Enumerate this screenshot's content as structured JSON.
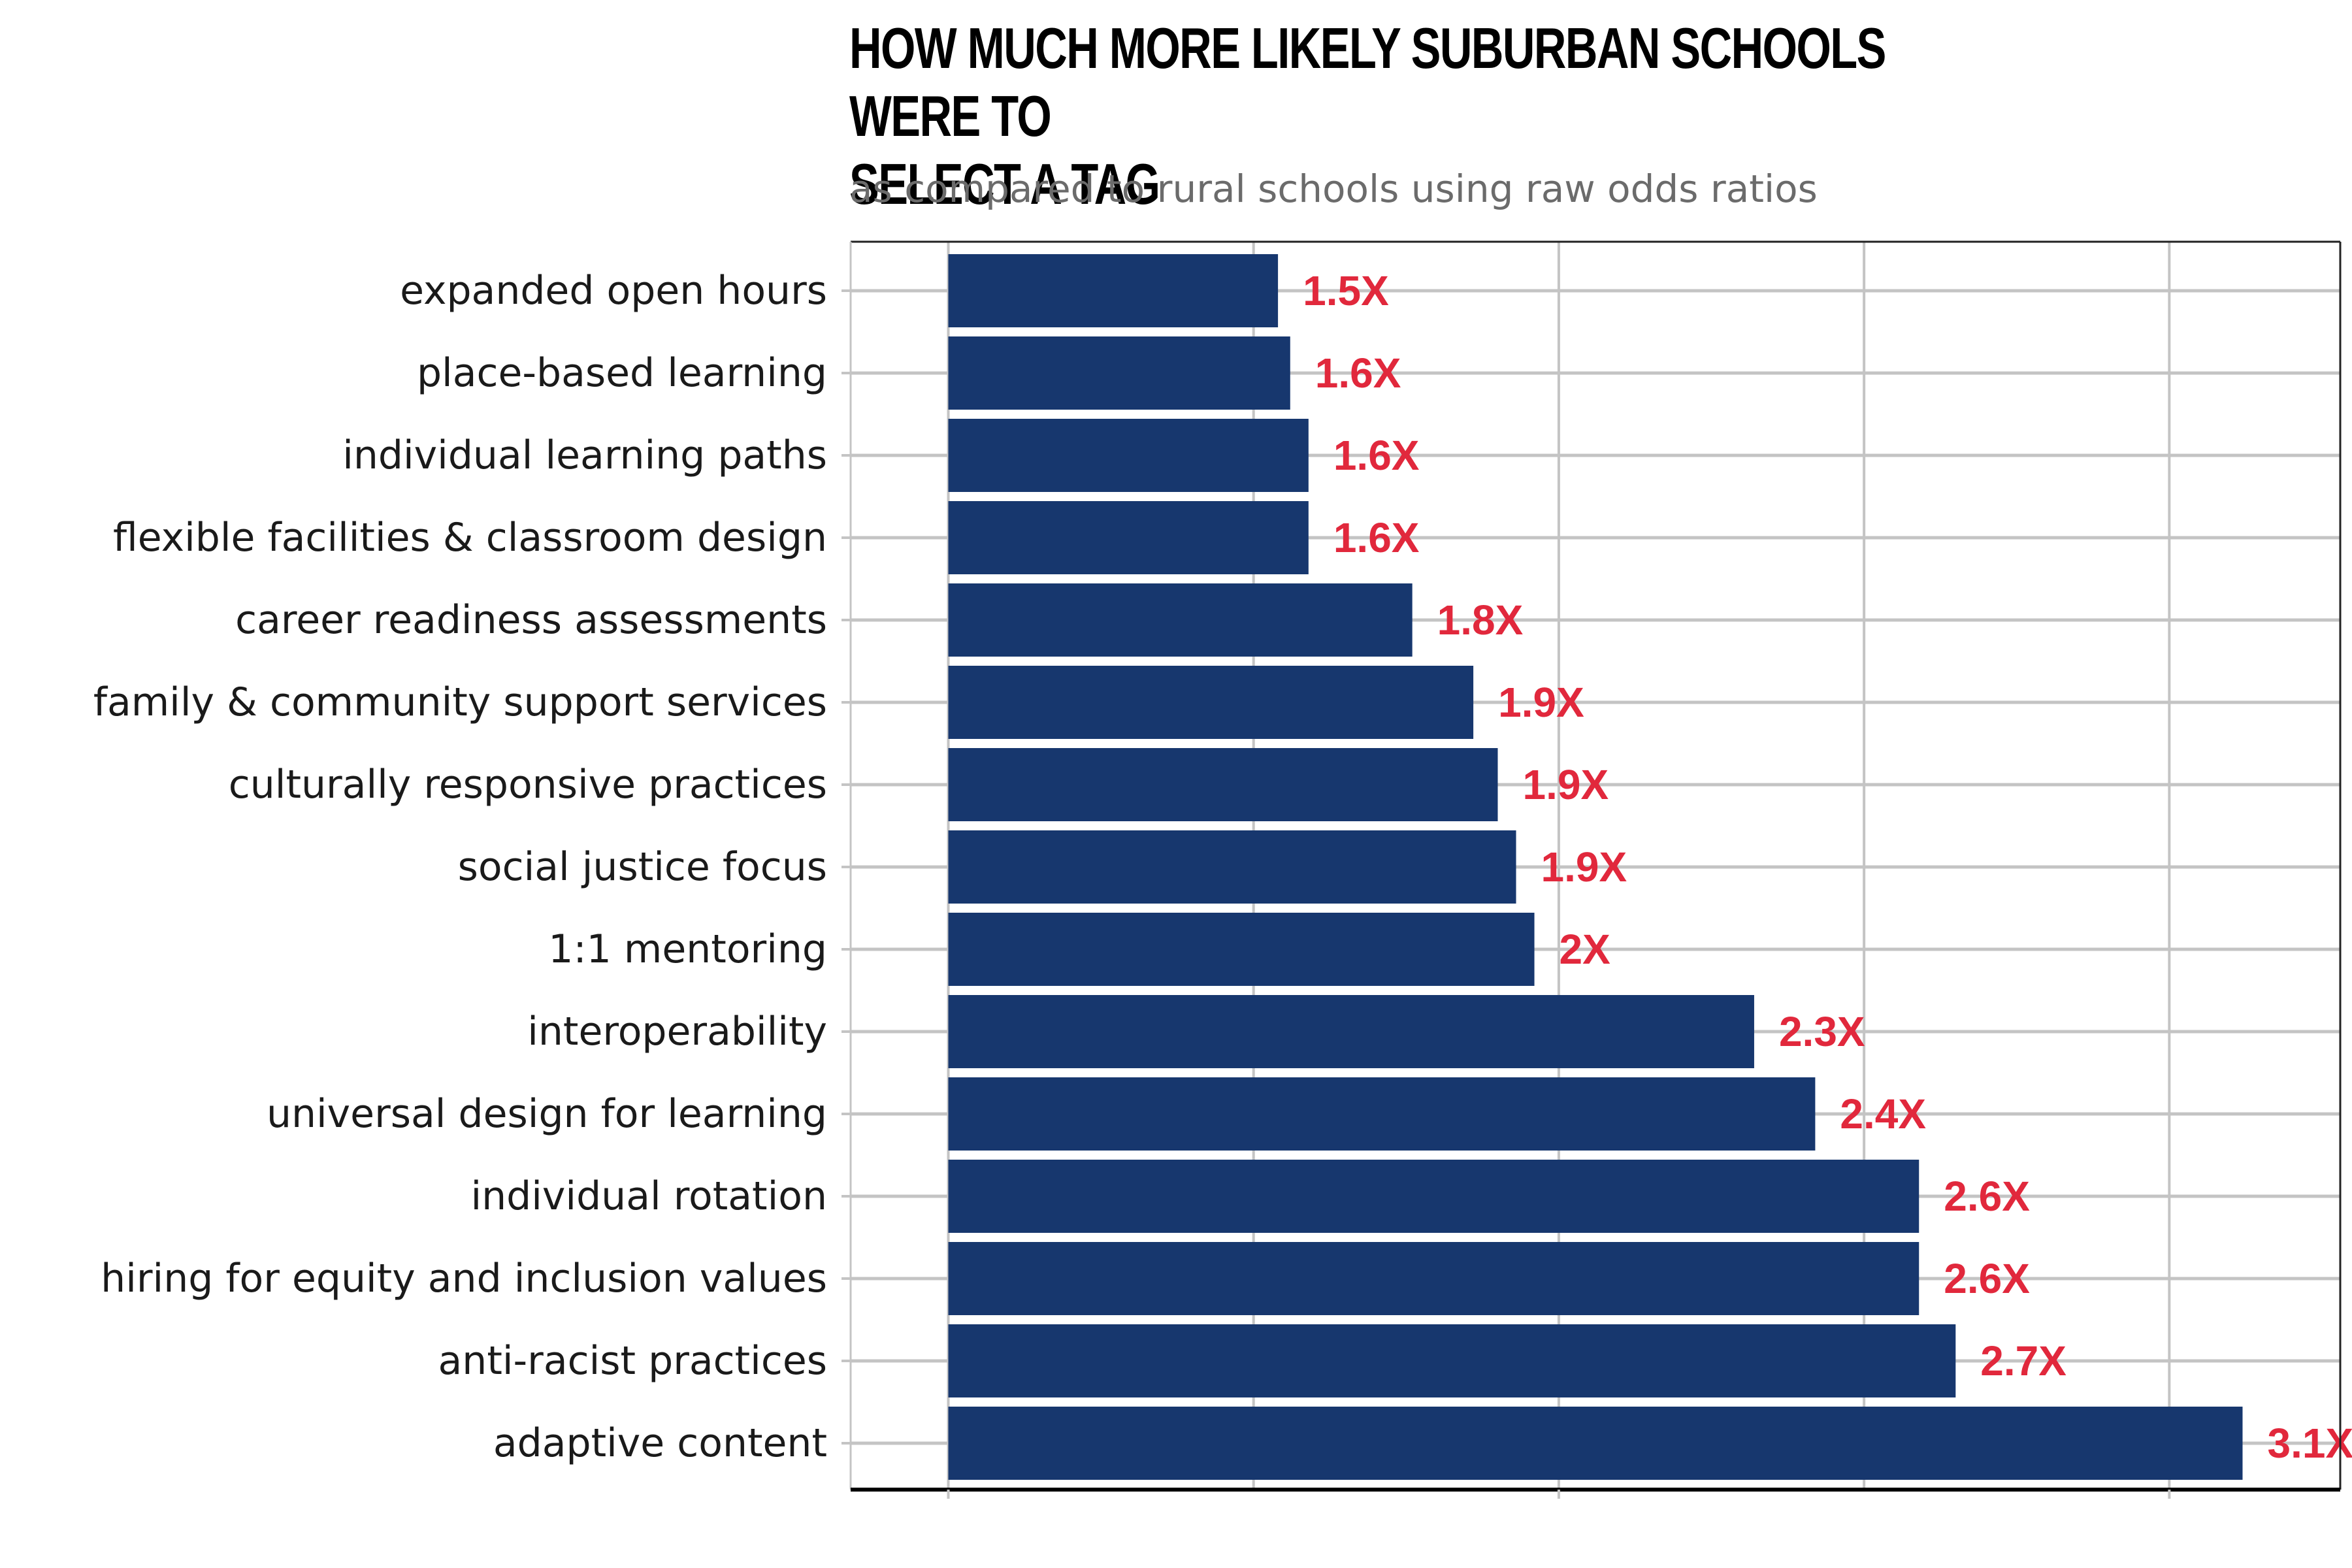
{
  "chart_data": {
    "type": "bar",
    "orientation": "horizontal",
    "title": "HOW MUCH MORE LIKELY SUBURBAN SCHOOLS WERE TO\n SELECT A TAG",
    "subtitle": "as compared to rural schools using raw odds ratios",
    "xlabel": "",
    "ylabel": "",
    "xlim": [
      0.84,
      3.28
    ],
    "grid": true,
    "legend": "none",
    "value_suffix": "X",
    "categories": [
      "expanded open hours",
      "place-based learning",
      "individual learning paths",
      "flexible facilities & classroom design",
      "career readiness assessments",
      "family & community support services",
      "culturally responsive practices",
      "social justice focus",
      "1:1 mentoring",
      "interoperability",
      "universal design for learning",
      "individual rotation",
      "hiring for equity and inclusion values",
      "anti-racist practices",
      "adaptive content"
    ],
    "values": [
      1.54,
      1.56,
      1.59,
      1.59,
      1.76,
      1.86,
      1.9,
      1.93,
      1.96,
      2.32,
      2.42,
      2.59,
      2.59,
      2.65,
      3.12
    ],
    "data_labels": [
      "1.5X",
      "1.6X",
      "1.6X",
      "1.6X",
      "1.8X",
      "1.9X",
      "1.9X",
      "1.9X",
      "2X",
      "2.3X",
      "2.4X",
      "2.6X",
      "2.6X",
      "2.7X",
      "3.1X"
    ]
  },
  "colors": {
    "bar": "#17376e",
    "value_label": "#e1283c",
    "grid": "#c4c4c4",
    "panel_border": "#222222",
    "subtitle": "#6b6b6b"
  }
}
